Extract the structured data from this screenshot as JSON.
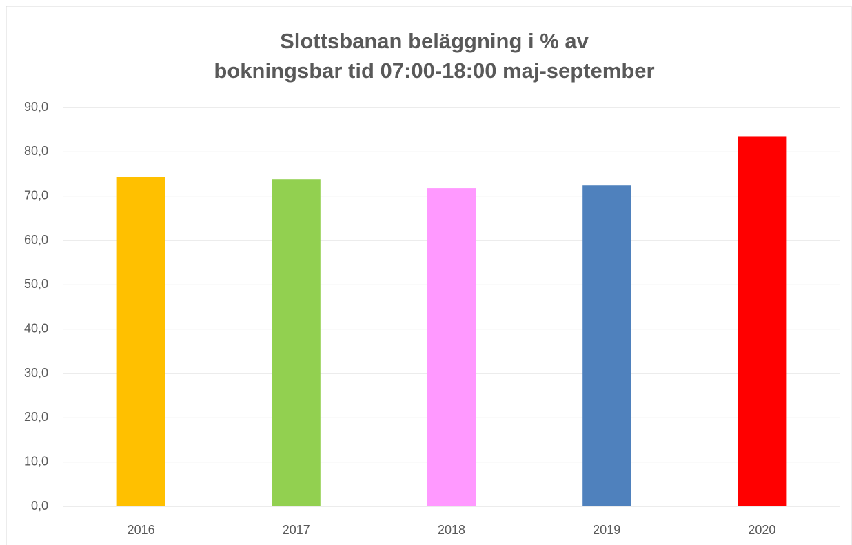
{
  "chart_data": {
    "type": "bar",
    "title": [
      "Slottsbanan beläggning i % av",
      "bokningsbar tid 07:00-18:00 maj-september"
    ],
    "categories": [
      "2016",
      "2017",
      "2018",
      "2019",
      "2020"
    ],
    "values": [
      74.3,
      73.8,
      71.8,
      72.4,
      83.4
    ],
    "colors": [
      "#ffc000",
      "#92d050",
      "#ff99ff",
      "#4f81bd",
      "#ff0000"
    ],
    "ylim": [
      0,
      90
    ],
    "yticks": [
      {
        "value": 0,
        "label": "0,0"
      },
      {
        "value": 10,
        "label": "10,0"
      },
      {
        "value": 20,
        "label": "20,0"
      },
      {
        "value": 30,
        "label": "30,0"
      },
      {
        "value": 40,
        "label": "40,0"
      },
      {
        "value": 50,
        "label": "50,0"
      },
      {
        "value": 60,
        "label": "60,0"
      },
      {
        "value": 70,
        "label": "70,0"
      },
      {
        "value": 80,
        "label": "80,0"
      },
      {
        "value": 90,
        "label": "90,0"
      }
    ],
    "grid": true
  }
}
